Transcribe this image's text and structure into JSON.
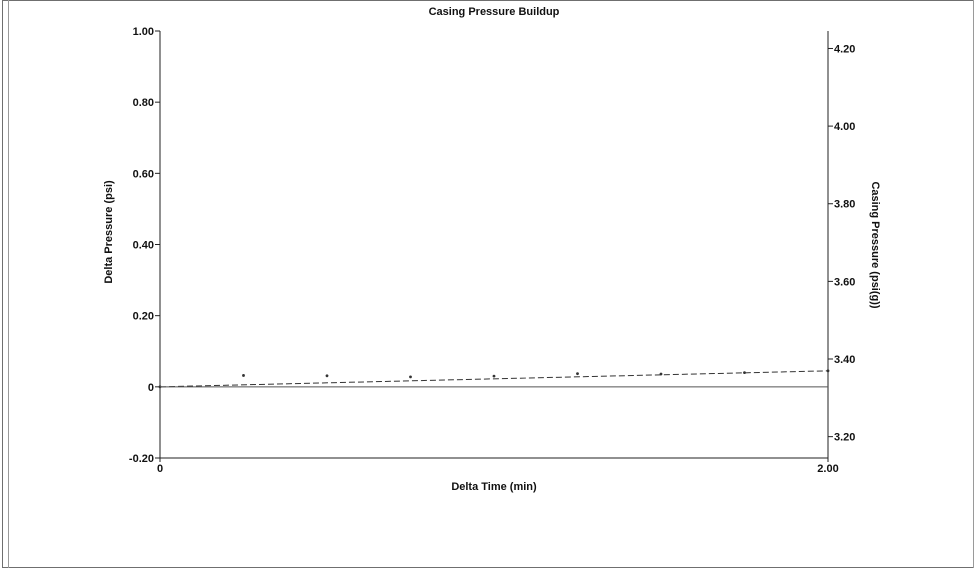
{
  "chart_data": {
    "type": "scatter",
    "title": "Casing Pressure Buildup",
    "xlabel": "Delta Time (min)",
    "ylabel": "Delta Pressure (psi)",
    "y2label": "Casing Pressure (psi(g))",
    "xlim": [
      0,
      2.0
    ],
    "ylim": [
      -0.2,
      1.0
    ],
    "y2lim": [
      3.145,
      4.245
    ],
    "x_ticks": [
      "0",
      "2.00"
    ],
    "y_ticks": [
      "-0.20",
      "0",
      "0.20",
      "0.40",
      "0.60",
      "0.80",
      "1.00"
    ],
    "y2_ticks": [
      "3.20",
      "3.40",
      "3.60",
      "3.80",
      "4.00",
      "4.20"
    ],
    "grid": false,
    "legend": "none",
    "series": [
      {
        "style": "dots",
        "axis": "left",
        "x": [
          0.0,
          0.25,
          0.5,
          0.75,
          1.0,
          1.25,
          1.5,
          1.75,
          2.0
        ],
        "y": [
          0.0,
          0.032,
          0.031,
          0.028,
          0.03,
          0.037,
          0.036,
          0.04,
          0.045
        ]
      },
      {
        "style": "dashed-line",
        "axis": "left",
        "x": [
          0.0,
          2.0
        ],
        "y": [
          0.0,
          0.045
        ]
      },
      {
        "style": "solid-line",
        "axis": "left",
        "x": [
          0.0,
          2.0
        ],
        "y": [
          0.0,
          0.0
        ]
      }
    ],
    "colors": {
      "axis": "#222222",
      "series": "#333333",
      "zero_line": "#555555"
    }
  }
}
